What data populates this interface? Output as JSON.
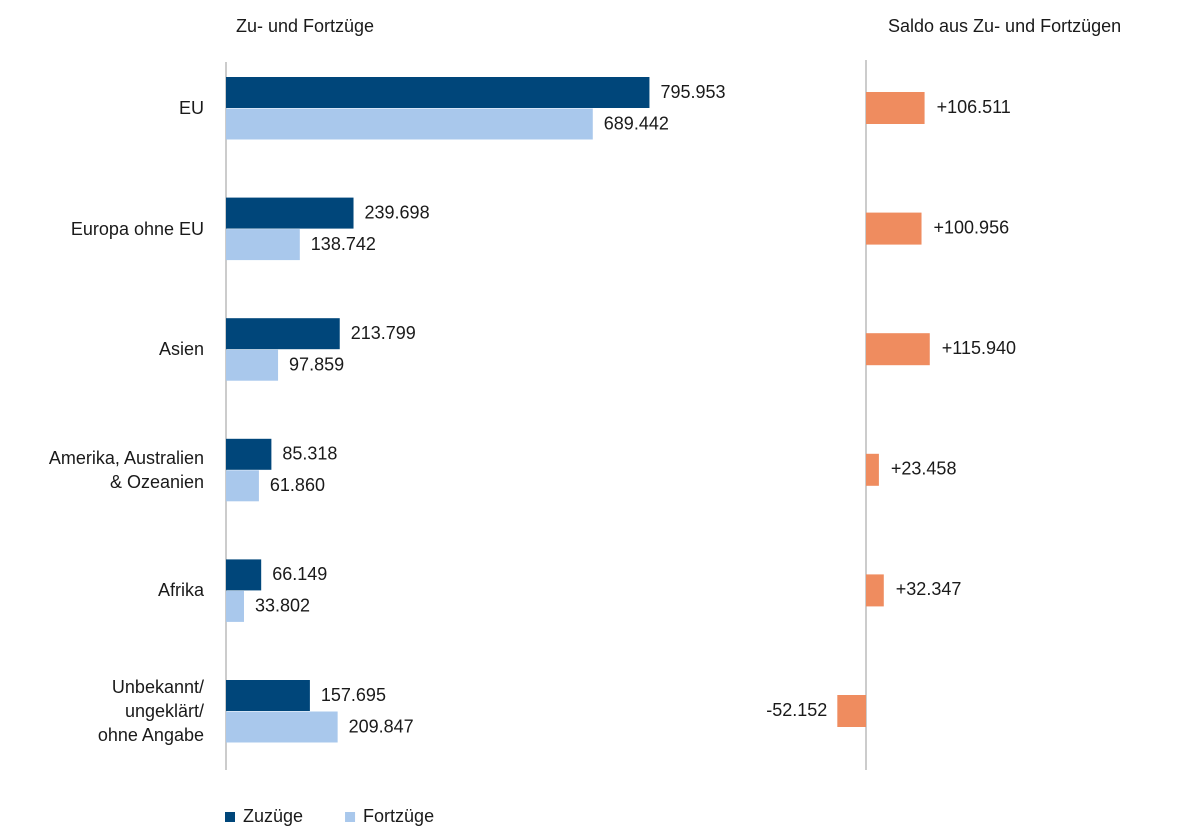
{
  "chart_data": [
    {
      "type": "bar",
      "title": "Zu- und Fortzüge",
      "categories": [
        "EU",
        "Europa ohne EU",
        "Asien",
        "Amerika, Australien\n& Ozeanien",
        "Afrika",
        "Unbekannt/\nungeklärt/\nohne Angabe"
      ],
      "series": [
        {
          "name": "Zuzüge",
          "color": "#00467a",
          "values": [
            795953,
            239698,
            213799,
            85318,
            66149,
            157695
          ],
          "value_labels": [
            "795.953",
            "239.698",
            "213.799",
            "85.318",
            "66.149",
            "157.695"
          ]
        },
        {
          "name": "Fortzüge",
          "color": "#a9c8ec",
          "values": [
            689442,
            138742,
            97859,
            61860,
            33802,
            209847
          ],
          "value_labels": [
            "689.442",
            "138.742",
            "97.859",
            "61.860",
            "33.802",
            "209.847"
          ]
        }
      ],
      "xlim": [
        0,
        1000000
      ]
    },
    {
      "type": "bar",
      "title": "Saldo aus Zu- und Fortzügen",
      "color": "#ef8c5f",
      "values": [
        106511,
        100956,
        115940,
        23458,
        32347,
        -52152
      ],
      "value_labels": [
        "+106.511",
        "+100.956",
        "+115.940",
        "+23.458",
        "+32.347",
        "-52.152"
      ],
      "xlim": [
        -100000,
        200000
      ]
    }
  ]
}
